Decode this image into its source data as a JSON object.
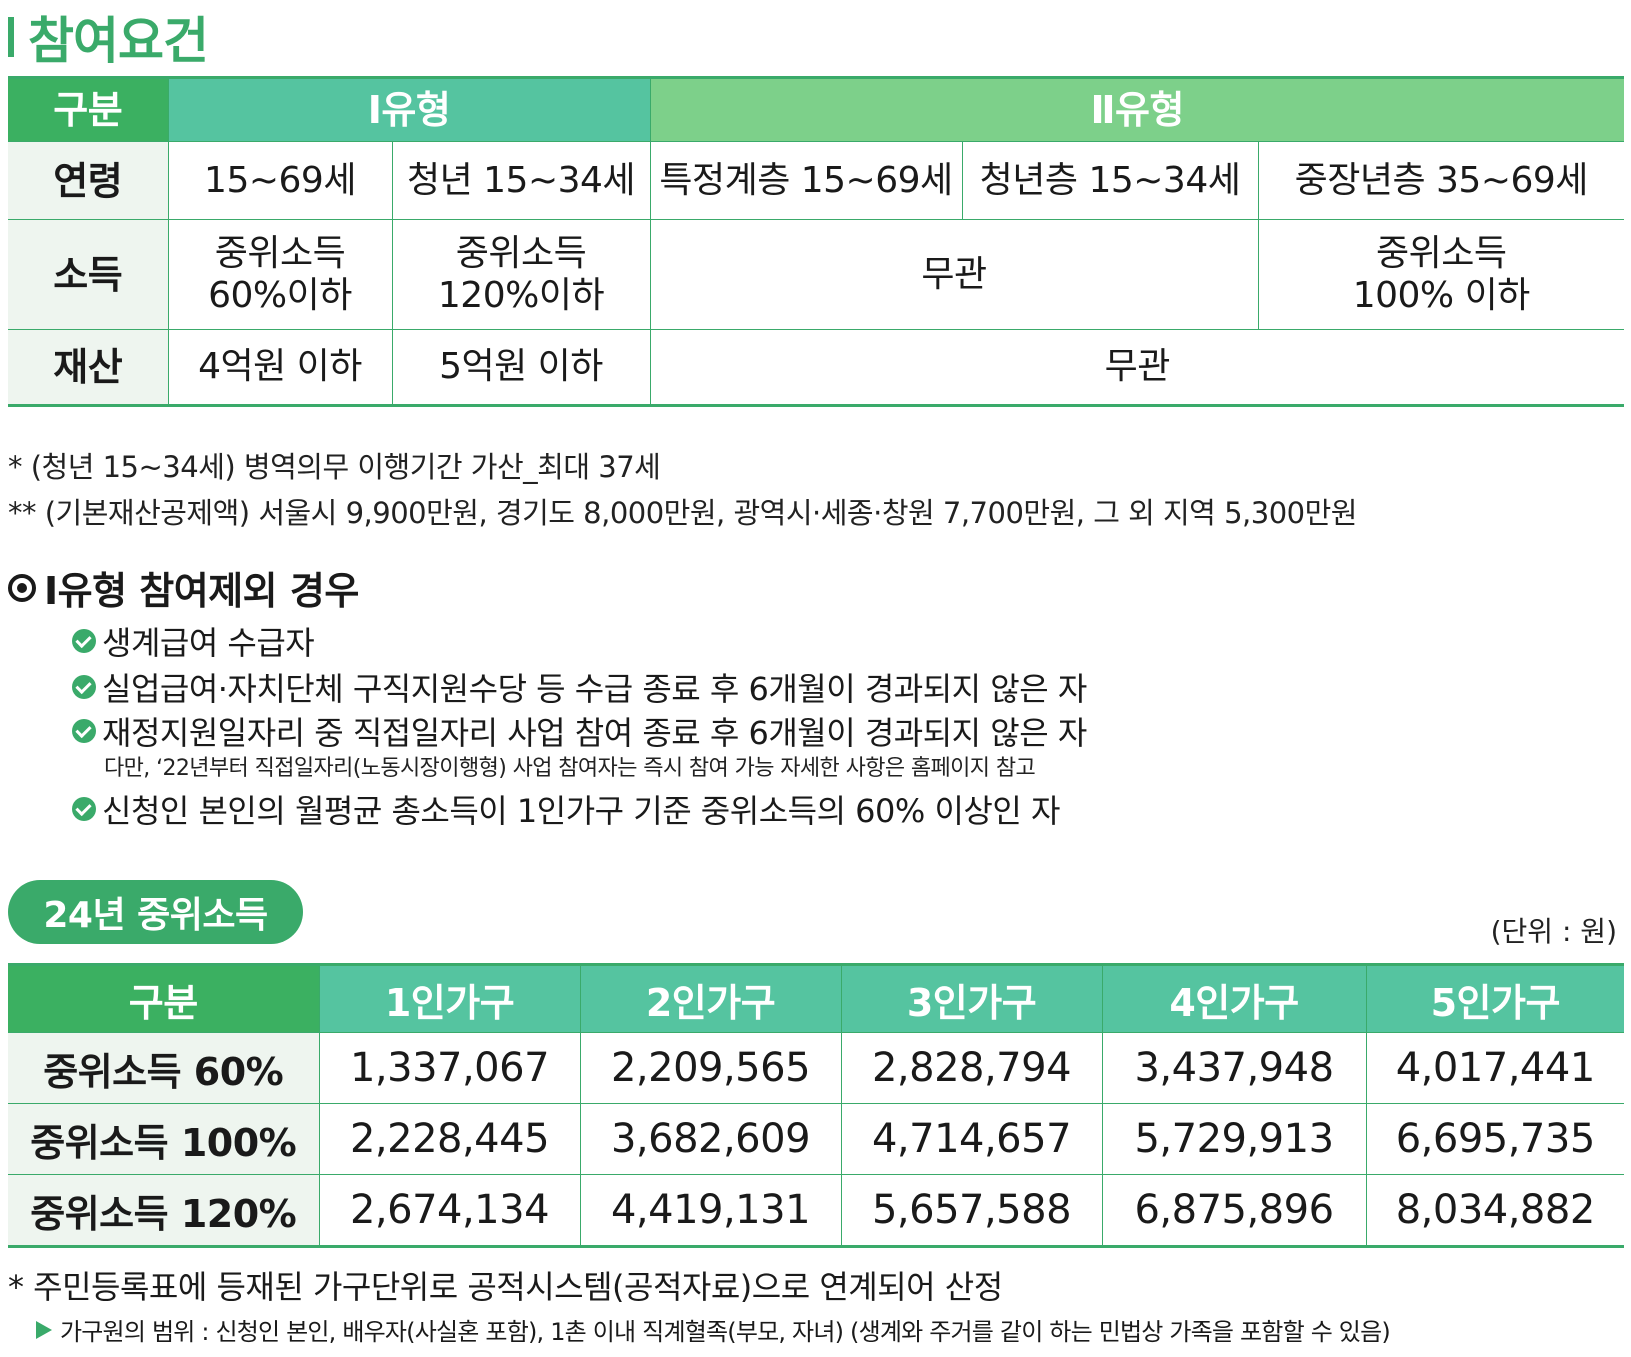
{
  "title": "참여요건",
  "requirements_table": {
    "header": {
      "gubun": "구분",
      "type1": "Ⅰ유형",
      "type2": "Ⅱ유형"
    },
    "age": {
      "label": "연령",
      "cells": [
        "15~69세",
        "청년 15~34세",
        "특정계층 15~69세",
        "청년층 15~34세",
        "중장년층 35~69세"
      ]
    },
    "income": {
      "label": "소득",
      "t1_general": [
        "중위소득",
        "60%이하"
      ],
      "t1_youth": [
        "중위소득",
        "120%이하"
      ],
      "t2_special_youth": "무관",
      "t2_middle": [
        "중위소득",
        "100% 이하"
      ]
    },
    "assets": {
      "label": "재산",
      "t1_general": "4억원 이하",
      "t1_youth": "5억원 이하",
      "t2": "무관"
    }
  },
  "notes": [
    "* (청년 15~34세) 병역의무 이행기간 가산_최대 37세",
    "** (기본재산공제액) 서울시 9,900만원, 경기도 8,000만원, 광역시·세종·창원 7,700만원, 그 외 지역 5,300만원"
  ],
  "exclusion": {
    "heading": "Ⅰ유형 참여제외 경우",
    "items": [
      "생계급여 수급자",
      "실업급여·자치단체 구직지원수당 등 수급 종료 후 6개월이 경과되지 않은 자",
      "재정지원일자리 중 직접일자리 사업 참여 종료 후 6개월이 경과되지 않은 자",
      "신청인 본인의 월평균 총소득이 1인가구 기준 중위소득의 60% 이상인 자"
    ],
    "sub_note": "다만, ‘22년부터 직접일자리(노동시장이행형) 사업 참여자는 즉시 참여 가능 자세한 사항은 홈페이지 참고"
  },
  "median_income": {
    "badge": "24년 중위소득",
    "unit": "(단위 : 원)",
    "headers": [
      "구분",
      "1인가구",
      "2인가구",
      "3인가구",
      "4인가구",
      "5인가구"
    ],
    "rows": [
      {
        "label": "중위소득 60%",
        "values": [
          "1,337,067",
          "2,209,565",
          "2,828,794",
          "3,437,948",
          "4,017,441"
        ]
      },
      {
        "label": "중위소득 100%",
        "values": [
          "2,228,445",
          "3,682,609",
          "4,714,657",
          "5,729,913",
          "6,695,735"
        ]
      },
      {
        "label": "중위소득 120%",
        "values": [
          "2,674,134",
          "4,419,131",
          "5,657,588",
          "6,875,896",
          "8,034,882"
        ]
      }
    ]
  },
  "footer": {
    "note": "* 주민등록표에 등재된 가구단위로 공적시스템(공적자료)으로 연계되어 산정",
    "detail": "가구원의 범위 : 신청인 본인, 배우자(사실혼 포함), 1촌 이내 직계혈족(부모, 자녀) (생계와 주거를 같이 하는 민법상 가족을 포함할 수 있음)"
  },
  "colors": {
    "accent": "#3aaa6a",
    "header_type1": "#55c4a0",
    "header_type2": "#7dd08a",
    "row_header_bg": "#eef5ef"
  }
}
